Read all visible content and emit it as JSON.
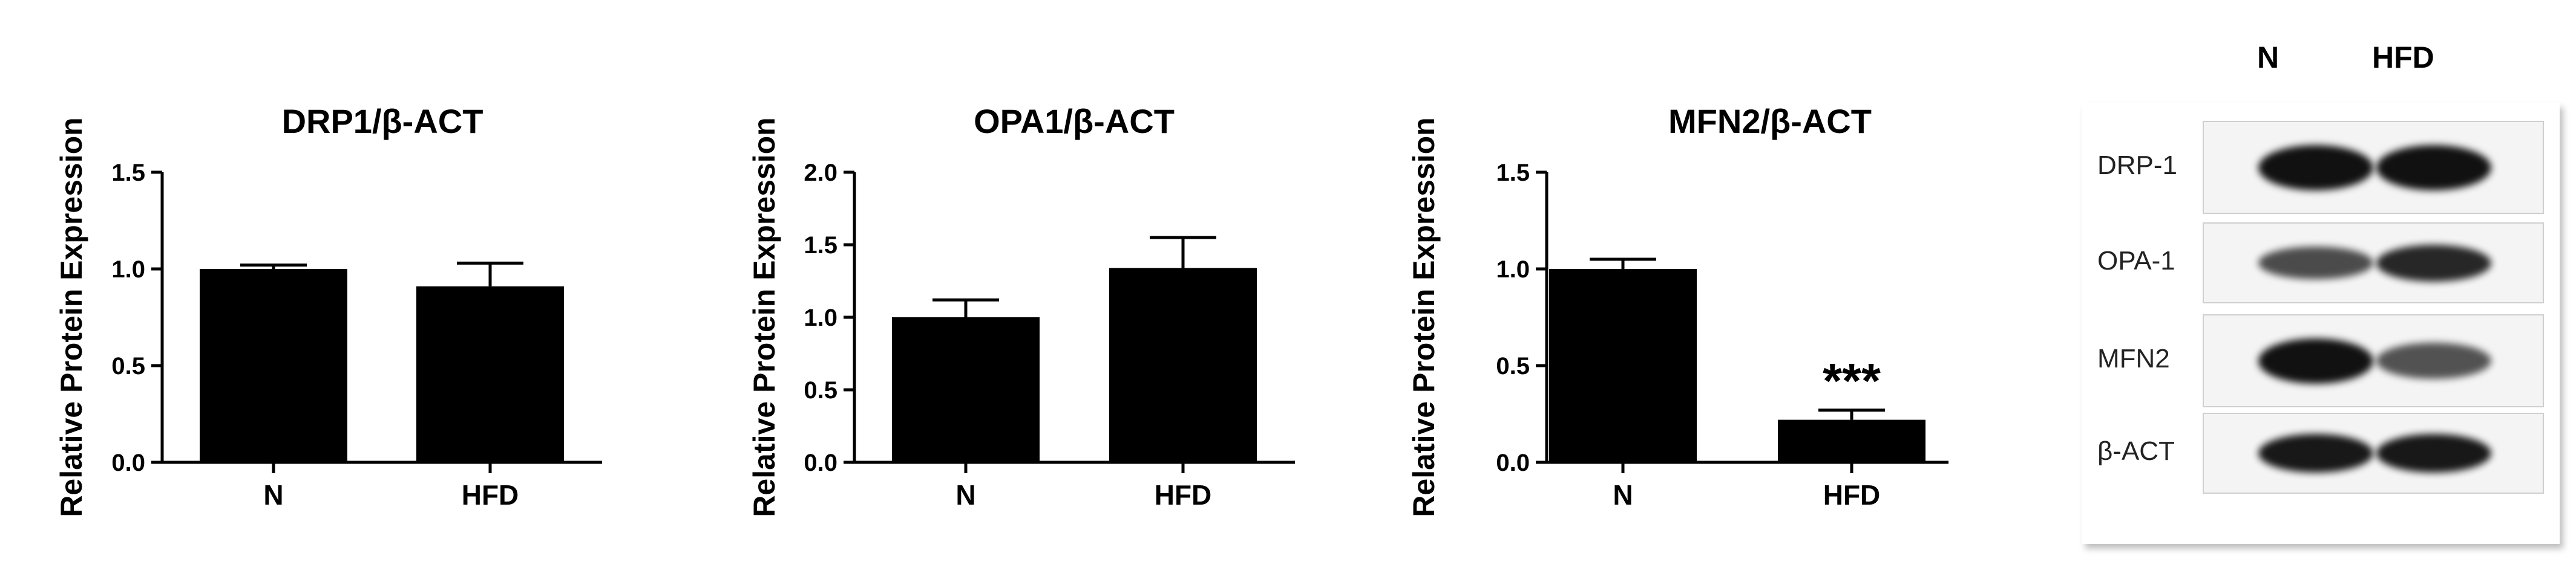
{
  "chart_data": [
    {
      "type": "bar",
      "title": "DRP1/β-ACT",
      "ylabel": "Relative Protein Expression",
      "categories": [
        "N",
        "HFD"
      ],
      "values": [
        1.0,
        0.91
      ],
      "errors": [
        0.02,
        0.12
      ],
      "ylim": [
        0,
        1.5
      ],
      "yticks": [
        "0.0",
        "0.5",
        "1.0",
        "1.5"
      ],
      "annotations": [
        "",
        ""
      ]
    },
    {
      "type": "bar",
      "title": "OPA1/β-ACT",
      "ylabel": "Relative Protein Expression",
      "categories": [
        "N",
        "HFD"
      ],
      "values": [
        1.0,
        1.34
      ],
      "errors": [
        0.12,
        0.21
      ],
      "ylim": [
        0,
        2.0
      ],
      "yticks": [
        "0.0",
        "0.5",
        "1.0",
        "1.5",
        "2.0"
      ],
      "annotations": [
        "",
        ""
      ]
    },
    {
      "type": "bar",
      "title": "MFN2/β-ACT",
      "ylabel": "Relative Protein Expression",
      "categories": [
        "N",
        "HFD"
      ],
      "values": [
        1.0,
        0.22
      ],
      "errors": [
        0.05,
        0.05
      ],
      "ylim": [
        0,
        1.5
      ],
      "yticks": [
        "0.0",
        "0.5",
        "1.0",
        "1.5"
      ],
      "annotations": [
        "",
        "***"
      ]
    }
  ],
  "blot": {
    "columns": [
      "N",
      "HFD"
    ],
    "rows": [
      {
        "label": "DRP-1",
        "intensity": [
          1.0,
          1.0
        ]
      },
      {
        "label": "OPA-1",
        "intensity": [
          0.6,
          0.85
        ]
      },
      {
        "label": "MFN2",
        "intensity": [
          1.0,
          0.55
        ]
      },
      {
        "label": "β-ACT",
        "intensity": [
          0.95,
          0.95
        ]
      }
    ]
  },
  "colors": {
    "bar": "#000000",
    "axis": "#000000",
    "band": "#111111"
  }
}
